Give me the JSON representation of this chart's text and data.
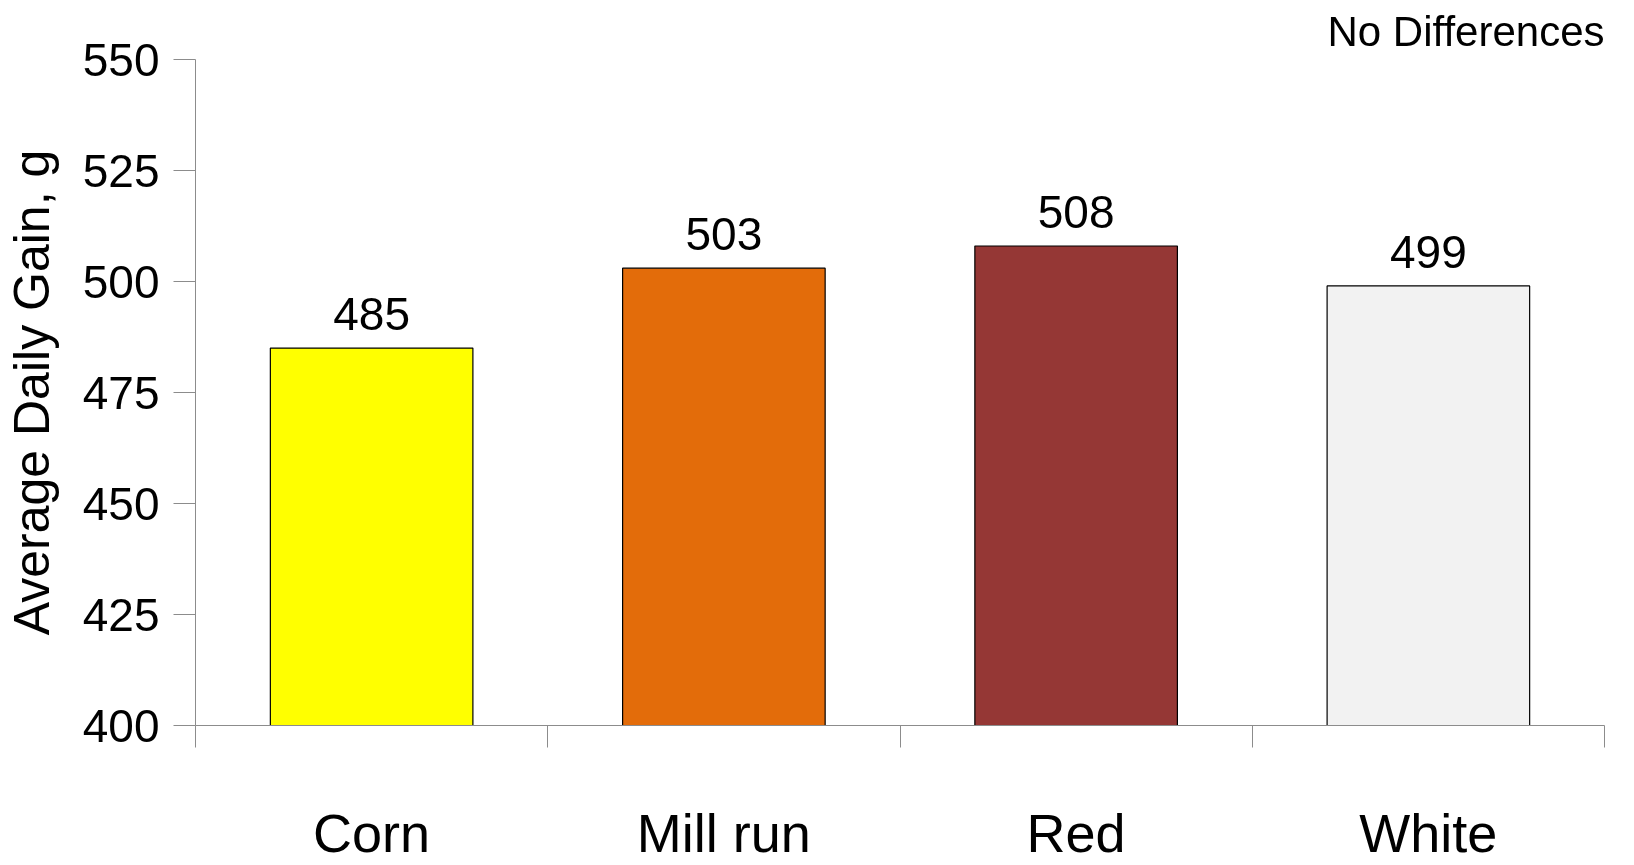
{
  "chart_data": {
    "type": "bar",
    "categories": [
      "Corn",
      "Mill run",
      "Red",
      "White"
    ],
    "values": [
      485,
      503,
      508,
      499
    ],
    "colors": [
      "#ffff00",
      "#e36c0a",
      "#953735",
      "#f2f2f2"
    ],
    "ylabel": "Average Daily Gain, g",
    "ylim": [
      400,
      550
    ],
    "yticks": [
      400,
      425,
      450,
      475,
      500,
      525,
      550
    ],
    "data_labels": true,
    "grid": false,
    "annotations": [
      "No Differences"
    ]
  }
}
